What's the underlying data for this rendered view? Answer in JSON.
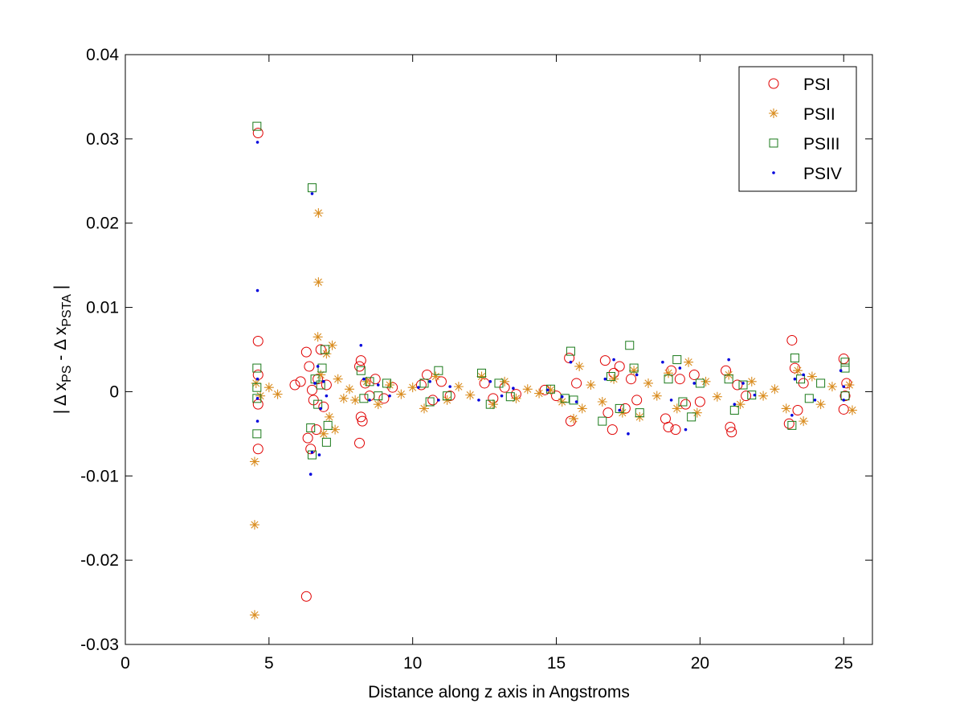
{
  "chart_data": {
    "type": "scatter",
    "title": "",
    "xlabel": "Distance along z axis in Angstroms",
    "ylabel": {
      "parts": [
        {
          "text": "| Δ x",
          "role": "base"
        },
        {
          "text": "PS",
          "role": "sub"
        },
        {
          "text": " - Δ x",
          "role": "base"
        },
        {
          "text": "PSTA",
          "role": "sub"
        },
        {
          "text": " |",
          "role": "base"
        }
      ]
    },
    "xlim": [
      0,
      26
    ],
    "ylim": [
      -0.03,
      0.04
    ],
    "xticks": [
      0,
      5,
      10,
      15,
      20,
      25
    ],
    "xtick_labels": [
      "0",
      "5",
      "10",
      "15",
      "20",
      "25"
    ],
    "yticks": [
      -0.03,
      -0.02,
      -0.01,
      0,
      0.01,
      0.02,
      0.03,
      0.04
    ],
    "ytick_labels": [
      "-0.03",
      "-0.02",
      "-0.01",
      "0",
      "0.01",
      "0.02",
      "0.03",
      "0.04"
    ],
    "grid": false,
    "legend_position": "top-right",
    "series": [
      {
        "name": "PSI",
        "marker": "circle",
        "color": "#e00000",
        "points": [
          [
            4.62,
            0.0307
          ],
          [
            4.62,
            0.006
          ],
          [
            4.62,
            0.002
          ],
          [
            4.62,
            -0.0015
          ],
          [
            4.62,
            -0.0068
          ],
          [
            5.9,
            0.0008
          ],
          [
            6.1,
            0.0012
          ],
          [
            6.3,
            0.0047
          ],
          [
            6.35,
            -0.0055
          ],
          [
            6.3,
            -0.0243
          ],
          [
            6.45,
            -0.0068
          ],
          [
            6.4,
            0.003
          ],
          [
            6.55,
            -0.001
          ],
          [
            6.7,
            0.0015
          ],
          [
            6.8,
            0.005
          ],
          [
            6.9,
            -0.0018
          ],
          [
            7.0,
            0.0008
          ],
          [
            6.65,
            -0.0045
          ],
          [
            6.5,
            0.0002
          ],
          [
            8.15,
            0.003
          ],
          [
            8.2,
            0.0037
          ],
          [
            8.15,
            -0.0061
          ],
          [
            8.25,
            -0.0035
          ],
          [
            8.2,
            -0.003
          ],
          [
            8.35,
            0.001
          ],
          [
            8.5,
            -0.0005
          ],
          [
            8.7,
            0.0015
          ],
          [
            9.0,
            -0.0008
          ],
          [
            9.3,
            0.0005
          ],
          [
            10.3,
            0.0008
          ],
          [
            10.5,
            0.002
          ],
          [
            10.7,
            -0.001
          ],
          [
            11.0,
            0.0012
          ],
          [
            11.3,
            -0.0005
          ],
          [
            12.5,
            0.001
          ],
          [
            12.8,
            -0.0008
          ],
          [
            13.2,
            0.0005
          ],
          [
            13.6,
            -0.0003
          ],
          [
            14.6,
            0.0002
          ],
          [
            15.0,
            -0.0005
          ],
          [
            15.45,
            0.004
          ],
          [
            15.5,
            -0.0035
          ],
          [
            15.7,
            0.001
          ],
          [
            16.7,
            0.0037
          ],
          [
            16.8,
            -0.0025
          ],
          [
            16.95,
            -0.0045
          ],
          [
            17.0,
            0.0022
          ],
          [
            17.2,
            0.003
          ],
          [
            17.4,
            -0.002
          ],
          [
            17.6,
            0.0015
          ],
          [
            17.8,
            -0.001
          ],
          [
            18.8,
            -0.0032
          ],
          [
            18.9,
            -0.0042
          ],
          [
            19.0,
            0.0025
          ],
          [
            19.15,
            -0.0045
          ],
          [
            19.3,
            0.0015
          ],
          [
            19.5,
            -0.0015
          ],
          [
            19.8,
            0.002
          ],
          [
            20.0,
            -0.0012
          ],
          [
            20.9,
            0.0025
          ],
          [
            21.05,
            -0.0042
          ],
          [
            21.1,
            -0.0048
          ],
          [
            21.3,
            0.0008
          ],
          [
            21.6,
            -0.0005
          ],
          [
            23.1,
            -0.0038
          ],
          [
            23.2,
            0.0061
          ],
          [
            23.3,
            0.0028
          ],
          [
            23.4,
            -0.0022
          ],
          [
            23.6,
            0.001
          ],
          [
            25.0,
            0.0039
          ],
          [
            25.0,
            -0.0021
          ],
          [
            25.05,
            -0.0005
          ],
          [
            25.1,
            0.001
          ]
        ]
      },
      {
        "name": "PSII",
        "marker": "asterisk",
        "color": "#d98c1f",
        "points": [
          [
            4.5,
            -0.0265
          ],
          [
            4.5,
            -0.0158
          ],
          [
            4.5,
            -0.0083
          ],
          [
            4.55,
            0.001
          ],
          [
            4.7,
            -0.0005
          ],
          [
            5.0,
            0.0005
          ],
          [
            5.3,
            -0.0003
          ],
          [
            6.72,
            0.0212
          ],
          [
            6.72,
            0.013
          ],
          [
            6.7,
            0.0065
          ],
          [
            6.8,
            0.002
          ],
          [
            6.9,
            -0.005
          ],
          [
            7.0,
            0.0045
          ],
          [
            7.1,
            -0.003
          ],
          [
            7.2,
            0.0055
          ],
          [
            7.3,
            -0.0045
          ],
          [
            7.4,
            0.0015
          ],
          [
            7.6,
            -0.0008
          ],
          [
            7.8,
            0.0003
          ],
          [
            8.0,
            -0.001
          ],
          [
            8.4,
            0.0012
          ],
          [
            8.8,
            -0.0015
          ],
          [
            9.2,
            0.0008
          ],
          [
            9.6,
            -0.0003
          ],
          [
            10.0,
            0.0005
          ],
          [
            10.4,
            -0.002
          ],
          [
            10.8,
            0.0018
          ],
          [
            11.2,
            -0.001
          ],
          [
            11.6,
            0.0006
          ],
          [
            12.0,
            -0.0004
          ],
          [
            12.4,
            0.0018
          ],
          [
            12.8,
            -0.0015
          ],
          [
            13.2,
            0.0012
          ],
          [
            13.6,
            -0.0008
          ],
          [
            14.0,
            0.0003
          ],
          [
            14.4,
            -0.0002
          ],
          [
            14.8,
            0.0002
          ],
          [
            15.2,
            -0.0012
          ],
          [
            15.6,
            -0.0032
          ],
          [
            15.8,
            0.003
          ],
          [
            15.9,
            -0.002
          ],
          [
            16.2,
            0.0008
          ],
          [
            16.6,
            -0.0012
          ],
          [
            17.0,
            0.0015
          ],
          [
            17.3,
            -0.0025
          ],
          [
            17.7,
            0.0025
          ],
          [
            17.9,
            -0.003
          ],
          [
            18.2,
            0.001
          ],
          [
            18.5,
            -0.0005
          ],
          [
            18.9,
            0.0022
          ],
          [
            19.2,
            -0.002
          ],
          [
            19.6,
            0.0035
          ],
          [
            19.9,
            -0.0025
          ],
          [
            20.2,
            0.0012
          ],
          [
            20.6,
            -0.0006
          ],
          [
            21.0,
            0.002
          ],
          [
            21.4,
            -0.0015
          ],
          [
            21.8,
            0.0012
          ],
          [
            22.2,
            -0.0005
          ],
          [
            22.6,
            0.0003
          ],
          [
            23.0,
            -0.002
          ],
          [
            23.4,
            0.0025
          ],
          [
            23.6,
            -0.0035
          ],
          [
            23.9,
            0.0018
          ],
          [
            24.2,
            -0.0015
          ],
          [
            24.6,
            0.0006
          ],
          [
            25.2,
            0.0008
          ],
          [
            25.3,
            -0.0022
          ]
        ]
      },
      {
        "name": "PSIII",
        "marker": "square",
        "color": "#1a7a1a",
        "points": [
          [
            4.58,
            0.0315
          ],
          [
            4.58,
            0.0028
          ],
          [
            4.58,
            0.0005
          ],
          [
            4.58,
            -0.0008
          ],
          [
            4.58,
            -0.005
          ],
          [
            6.5,
            0.0242
          ],
          [
            6.5,
            -0.0075
          ],
          [
            6.45,
            -0.0043
          ],
          [
            6.6,
            0.0015
          ],
          [
            6.7,
            -0.0015
          ],
          [
            6.85,
            0.0028
          ],
          [
            6.95,
            0.005
          ],
          [
            7.0,
            -0.006
          ],
          [
            7.05,
            -0.004
          ],
          [
            6.8,
            0.0008
          ],
          [
            8.2,
            0.0025
          ],
          [
            8.3,
            -0.0008
          ],
          [
            8.5,
            0.0012
          ],
          [
            8.8,
            -0.0005
          ],
          [
            9.1,
            0.001
          ],
          [
            10.4,
            0.001
          ],
          [
            10.6,
            -0.0012
          ],
          [
            10.9,
            0.0025
          ],
          [
            11.2,
            -0.0005
          ],
          [
            12.4,
            0.0022
          ],
          [
            12.7,
            -0.0015
          ],
          [
            13.0,
            0.001
          ],
          [
            13.4,
            -0.0006
          ],
          [
            14.8,
            0.0003
          ],
          [
            15.3,
            -0.0008
          ],
          [
            15.5,
            0.0048
          ],
          [
            15.6,
            -0.001
          ],
          [
            16.6,
            -0.0035
          ],
          [
            16.9,
            0.0018
          ],
          [
            17.2,
            -0.002
          ],
          [
            17.55,
            0.0055
          ],
          [
            17.7,
            0.0028
          ],
          [
            17.9,
            -0.0025
          ],
          [
            18.9,
            0.0015
          ],
          [
            19.2,
            0.0038
          ],
          [
            19.4,
            -0.0012
          ],
          [
            19.7,
            -0.003
          ],
          [
            20.0,
            0.001
          ],
          [
            21.0,
            0.0015
          ],
          [
            21.2,
            -0.0022
          ],
          [
            21.5,
            0.0008
          ],
          [
            21.8,
            -0.0004
          ],
          [
            23.2,
            -0.004
          ],
          [
            23.3,
            0.004
          ],
          [
            23.5,
            0.0015
          ],
          [
            23.8,
            -0.0008
          ],
          [
            24.2,
            0.001
          ],
          [
            25.05,
            0.0035
          ],
          [
            25.05,
            0.0028
          ],
          [
            25.05,
            -0.0005
          ]
        ]
      },
      {
        "name": "PSIV",
        "marker": "dot",
        "color": "#0000dd",
        "points": [
          [
            4.6,
            0.0296
          ],
          [
            4.6,
            0.012
          ],
          [
            4.6,
            0.0015
          ],
          [
            4.6,
            -0.0035
          ],
          [
            4.6,
            -0.0008
          ],
          [
            6.5,
            0.0235
          ],
          [
            6.45,
            -0.0098
          ],
          [
            6.5,
            -0.0072
          ],
          [
            6.75,
            -0.0075
          ],
          [
            6.6,
            0.001
          ],
          [
            6.8,
            -0.002
          ],
          [
            6.9,
            0.0012
          ],
          [
            7.0,
            -0.0005
          ],
          [
            6.7,
            0.003
          ],
          [
            8.2,
            0.0055
          ],
          [
            8.3,
            0.0015
          ],
          [
            8.5,
            -0.001
          ],
          [
            8.8,
            0.0008
          ],
          [
            9.2,
            -0.0005
          ],
          [
            10.2,
            0.0005
          ],
          [
            10.6,
            0.0012
          ],
          [
            10.9,
            -0.001
          ],
          [
            11.3,
            0.0006
          ],
          [
            12.3,
            -0.001
          ],
          [
            12.7,
            0.0012
          ],
          [
            13.1,
            -0.0005
          ],
          [
            13.5,
            0.0004
          ],
          [
            14.7,
            0.0002
          ],
          [
            15.2,
            -0.0006
          ],
          [
            15.5,
            0.0035
          ],
          [
            15.7,
            -0.0012
          ],
          [
            16.7,
            0.0015
          ],
          [
            17.0,
            0.0038
          ],
          [
            17.2,
            -0.0022
          ],
          [
            17.5,
            -0.005
          ],
          [
            17.8,
            0.002
          ],
          [
            18.7,
            0.0035
          ],
          [
            19.0,
            -0.001
          ],
          [
            19.3,
            0.0028
          ],
          [
            19.5,
            -0.0045
          ],
          [
            19.8,
            0.001
          ],
          [
            21.0,
            0.0038
          ],
          [
            21.2,
            -0.0015
          ],
          [
            21.5,
            0.001
          ],
          [
            21.9,
            -0.0004
          ],
          [
            23.2,
            -0.0028
          ],
          [
            23.3,
            0.0015
          ],
          [
            23.6,
            0.002
          ],
          [
            24.0,
            -0.001
          ],
          [
            24.9,
            0.0025
          ],
          [
            25.0,
            -0.001
          ],
          [
            25.0,
            0.0006
          ]
        ]
      }
    ]
  }
}
